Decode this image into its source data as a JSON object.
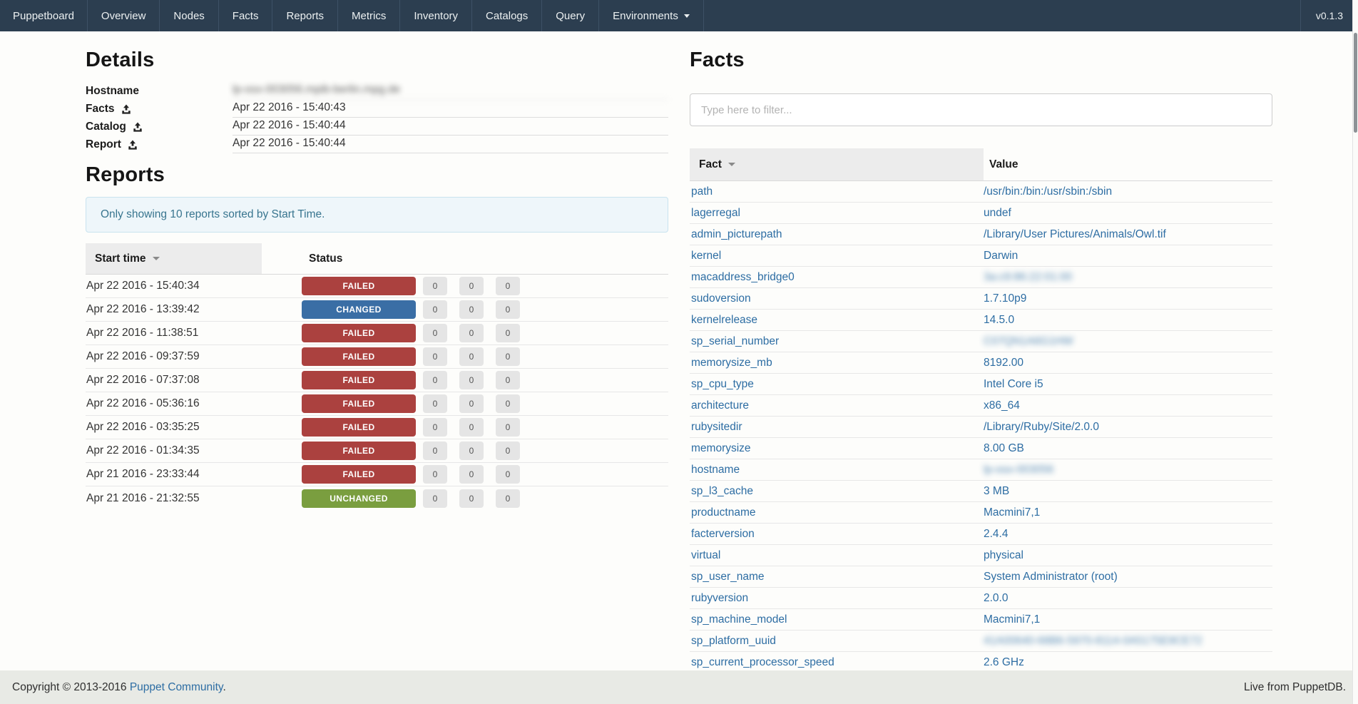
{
  "navbar": {
    "brand": "Puppetboard",
    "items": [
      "Overview",
      "Nodes",
      "Facts",
      "Reports",
      "Metrics",
      "Inventory",
      "Catalogs",
      "Query"
    ],
    "dropdown_label": "Environments",
    "version": "v0.1.3"
  },
  "details": {
    "heading": "Details",
    "rows": [
      {
        "label": "Hostname",
        "upload_icon": false,
        "value": "lp-osx-003056.mpib-berlin.mpg.de",
        "blurred": true
      },
      {
        "label": "Facts",
        "upload_icon": true,
        "value": "Apr 22 2016 - 15:40:43",
        "blurred": false
      },
      {
        "label": "Catalog",
        "upload_icon": true,
        "value": "Apr 22 2016 - 15:40:44",
        "blurred": false
      },
      {
        "label": "Report",
        "upload_icon": true,
        "value": "Apr 22 2016 - 15:40:44",
        "blurred": false
      }
    ]
  },
  "reports": {
    "heading": "Reports",
    "alert_text": "Only showing 10 reports sorted by Start Time.",
    "columns": {
      "time": "Start time",
      "status": "Status"
    },
    "rows": [
      {
        "time": "Apr 22 2016 - 15:40:34",
        "status": "FAILED",
        "counters": [
          0,
          0,
          0
        ]
      },
      {
        "time": "Apr 22 2016 - 13:39:42",
        "status": "CHANGED",
        "counters": [
          0,
          0,
          0
        ]
      },
      {
        "time": "Apr 22 2016 - 11:38:51",
        "status": "FAILED",
        "counters": [
          0,
          0,
          0
        ]
      },
      {
        "time": "Apr 22 2016 - 09:37:59",
        "status": "FAILED",
        "counters": [
          0,
          0,
          0
        ]
      },
      {
        "time": "Apr 22 2016 - 07:37:08",
        "status": "FAILED",
        "counters": [
          0,
          0,
          0
        ]
      },
      {
        "time": "Apr 22 2016 - 05:36:16",
        "status": "FAILED",
        "counters": [
          0,
          0,
          0
        ]
      },
      {
        "time": "Apr 22 2016 - 03:35:25",
        "status": "FAILED",
        "counters": [
          0,
          0,
          0
        ]
      },
      {
        "time": "Apr 22 2016 - 01:34:35",
        "status": "FAILED",
        "counters": [
          0,
          0,
          0
        ]
      },
      {
        "time": "Apr 21 2016 - 23:33:44",
        "status": "FAILED",
        "counters": [
          0,
          0,
          0
        ]
      },
      {
        "time": "Apr 21 2016 - 21:32:55",
        "status": "UNCHANGED",
        "counters": [
          0,
          0,
          0
        ]
      }
    ]
  },
  "facts": {
    "heading": "Facts",
    "filter_placeholder": "Type here to filter...",
    "columns": {
      "fact": "Fact",
      "value": "Value"
    },
    "rows": [
      {
        "name": "path",
        "value": "/usr/bin:/bin:/usr/sbin:/sbin",
        "blurred": false
      },
      {
        "name": "lagerregal",
        "value": "undef",
        "blurred": false
      },
      {
        "name": "admin_picturepath",
        "value": "/Library/User Pictures/Animals/Owl.tif",
        "blurred": false
      },
      {
        "name": "kernel",
        "value": "Darwin",
        "blurred": false
      },
      {
        "name": "macaddress_bridge0",
        "value": "3a:c9:86:22:01:00",
        "blurred": true
      },
      {
        "name": "sudoversion",
        "value": "1.7.10p9",
        "blurred": false
      },
      {
        "name": "kernelrelease",
        "value": "14.5.0",
        "blurred": false
      },
      {
        "name": "sp_serial_number",
        "value": "C07QN1A6G1HW",
        "blurred": true
      },
      {
        "name": "memorysize_mb",
        "value": "8192.00",
        "blurred": false
      },
      {
        "name": "sp_cpu_type",
        "value": "Intel Core i5",
        "blurred": false
      },
      {
        "name": "architecture",
        "value": "x86_64",
        "blurred": false
      },
      {
        "name": "rubysitedir",
        "value": "/Library/Ruby/Site/2.0.0",
        "blurred": false
      },
      {
        "name": "memorysize",
        "value": "8.00 GB",
        "blurred": false
      },
      {
        "name": "hostname",
        "value": "lp-osx-003056",
        "blurred": true
      },
      {
        "name": "sp_l3_cache",
        "value": "3 MB",
        "blurred": false
      },
      {
        "name": "productname",
        "value": "Macmini7,1",
        "blurred": false
      },
      {
        "name": "facterversion",
        "value": "2.4.4",
        "blurred": false
      },
      {
        "name": "virtual",
        "value": "physical",
        "blurred": false
      },
      {
        "name": "sp_user_name",
        "value": "System Administrator (root)",
        "blurred": false
      },
      {
        "name": "rubyversion",
        "value": "2.0.0",
        "blurred": false
      },
      {
        "name": "sp_machine_model",
        "value": "Macmini7,1",
        "blurred": false
      },
      {
        "name": "sp_platform_uuid",
        "value": "41A00640-68B6-5970-8114-0A5175E9CE72",
        "blurred": true
      },
      {
        "name": "sp_current_processor_speed",
        "value": "2.6 GHz",
        "blurred": false
      }
    ]
  },
  "footer": {
    "copyright_prefix": "Copyright © 2013-2016 ",
    "copyright_link": "Puppet Community",
    "copyright_suffix": ".",
    "right_text": "Live from PuppetDB."
  },
  "colors": {
    "navbar_bg": "#2c3e50",
    "link": "#2d6da3",
    "status": {
      "failed": "#ab413f",
      "changed": "#3a6ea5",
      "unchanged": "#7a9e3f"
    }
  }
}
